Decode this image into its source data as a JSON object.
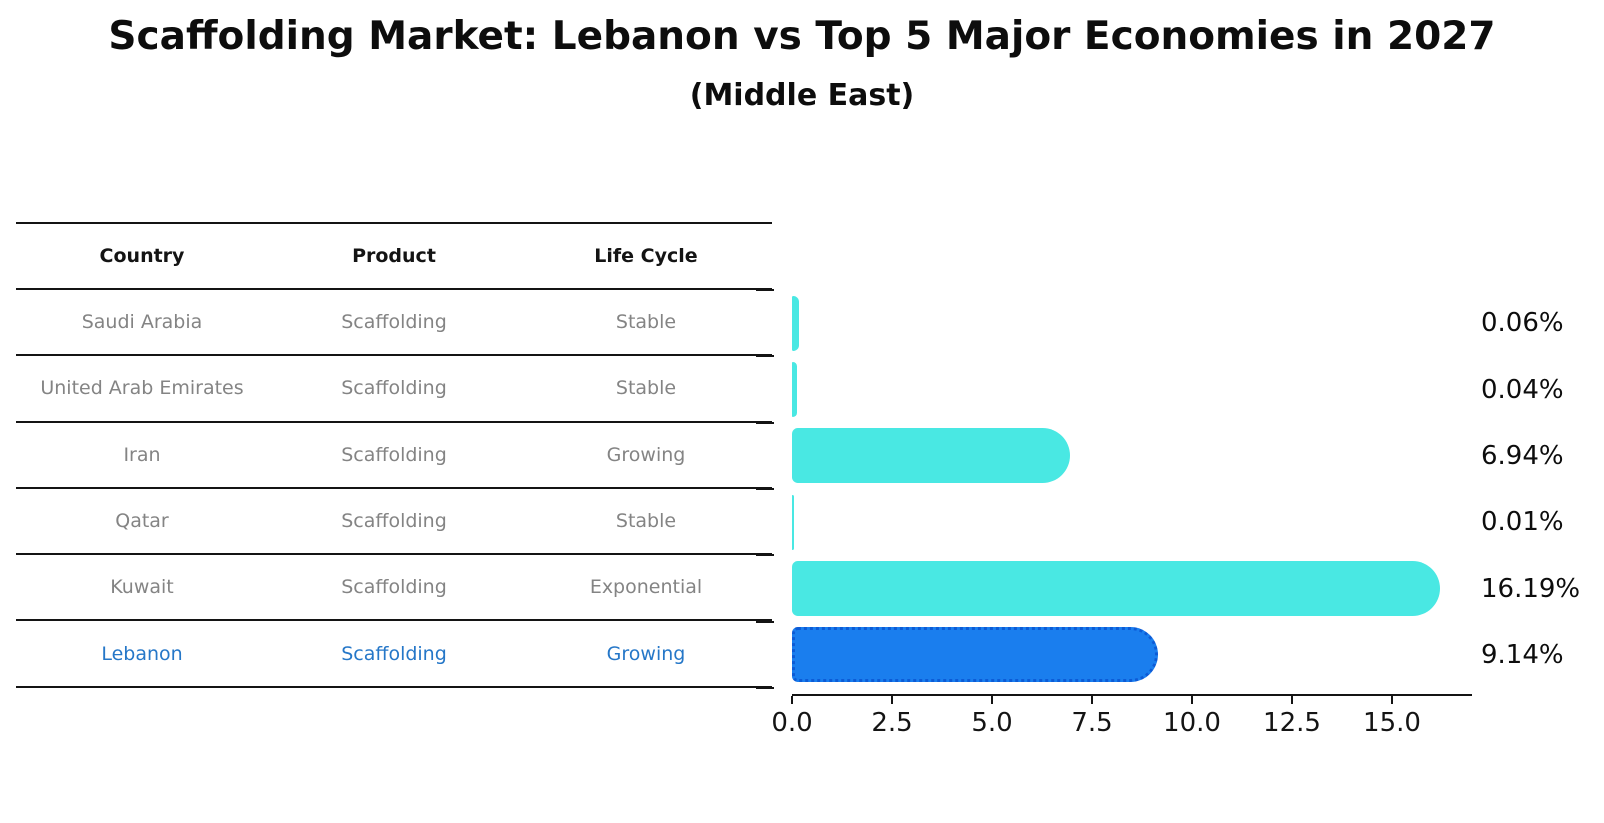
{
  "title": "Scaffolding Market: Lebanon vs Top 5 Major Economies in 2027",
  "subtitle": "(Middle East)",
  "table": {
    "headers": [
      "Country",
      "Product",
      "Life Cycle"
    ],
    "rows": [
      {
        "country": "Saudi Arabia",
        "product": "Scaffolding",
        "life_cycle": "Stable",
        "highlighted": false
      },
      {
        "country": "United Arab Emirates",
        "product": "Scaffolding",
        "life_cycle": "Stable",
        "highlighted": false
      },
      {
        "country": "Iran",
        "product": "Scaffolding",
        "life_cycle": "Growing",
        "highlighted": false
      },
      {
        "country": "Qatar",
        "product": "Scaffolding",
        "life_cycle": "Stable",
        "highlighted": false
      },
      {
        "country": "Kuwait",
        "product": "Scaffolding",
        "life_cycle": "Exponential",
        "highlighted": false
      },
      {
        "country": "Lebanon",
        "product": "Scaffolding",
        "life_cycle": "Growing",
        "highlighted": true
      }
    ]
  },
  "chart_data": {
    "type": "bar",
    "orientation": "horizontal",
    "title": "Scaffolding Market: Lebanon vs Top 5 Major Economies in 2027",
    "subtitle": "(Middle East)",
    "categories": [
      "Saudi Arabia",
      "United Arab Emirates",
      "Iran",
      "Qatar",
      "Kuwait",
      "Lebanon"
    ],
    "values": [
      0.06,
      0.04,
      6.94,
      0.01,
      16.19,
      9.14
    ],
    "value_labels": [
      "0.06%",
      "0.04%",
      "6.94%",
      "0.01%",
      "16.19%",
      "9.14%"
    ],
    "highlighted_category": "Lebanon",
    "xlabel": "",
    "ylabel": "",
    "xlim": [
      0,
      17
    ],
    "x_ticks": [
      "0.0",
      "2.5",
      "5.0",
      "7.5",
      "10.0",
      "12.5",
      "15.0"
    ],
    "grid": false,
    "legend": false
  },
  "colors": {
    "bar_default": "#49E8E3",
    "bar_highlight": "#1A7EEE",
    "bar_highlight_border": "#0C5BD6",
    "table_text": "#848484",
    "highlight_text": "#2577C8",
    "header_text": "#141414",
    "axis": "#141414"
  }
}
